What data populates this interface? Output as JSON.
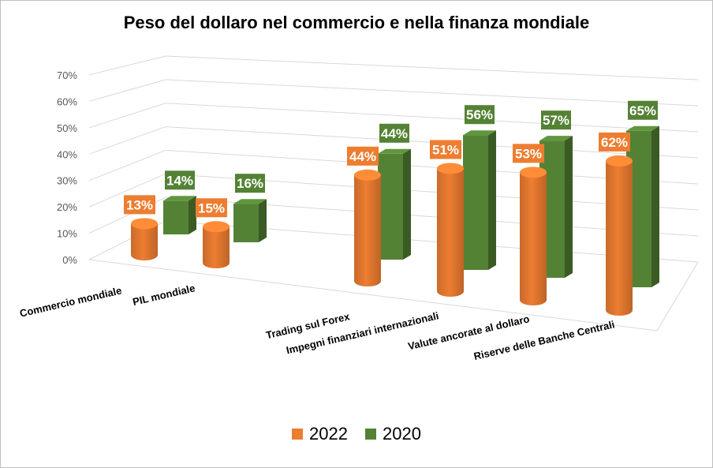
{
  "chart_data": {
    "type": "bar",
    "title": "Peso del dollaro nel commercio e nella finanza mondiale",
    "categories": [
      "Commercio mondiale",
      "PIL mondiale",
      "Trading sul Forex",
      "Impegni finanziari internazionali",
      "Valute ancorate al dollaro",
      "Riserve delle Banche Centrali"
    ],
    "series": [
      {
        "name": "2022",
        "color": "#ED7D31",
        "shape": "cylinder",
        "values": [
          13,
          15,
          44,
          51,
          53,
          62
        ],
        "labels": [
          "13%",
          "15%",
          "44%",
          "51%",
          "53%",
          "62%"
        ]
      },
      {
        "name": "2020",
        "color": "#548235",
        "shape": "box",
        "values": [
          14,
          16,
          44,
          56,
          57,
          65
        ],
        "labels": [
          "14%",
          "16%",
          "44%",
          "56%",
          "57%",
          "65%"
        ]
      }
    ],
    "yticks": [
      "0%",
      "10%",
      "20%",
      "30%",
      "40%",
      "50%",
      "60%",
      "70%"
    ],
    "ylim": [
      0,
      70
    ],
    "grid": true,
    "legend_position": "bottom",
    "style": "3d"
  }
}
